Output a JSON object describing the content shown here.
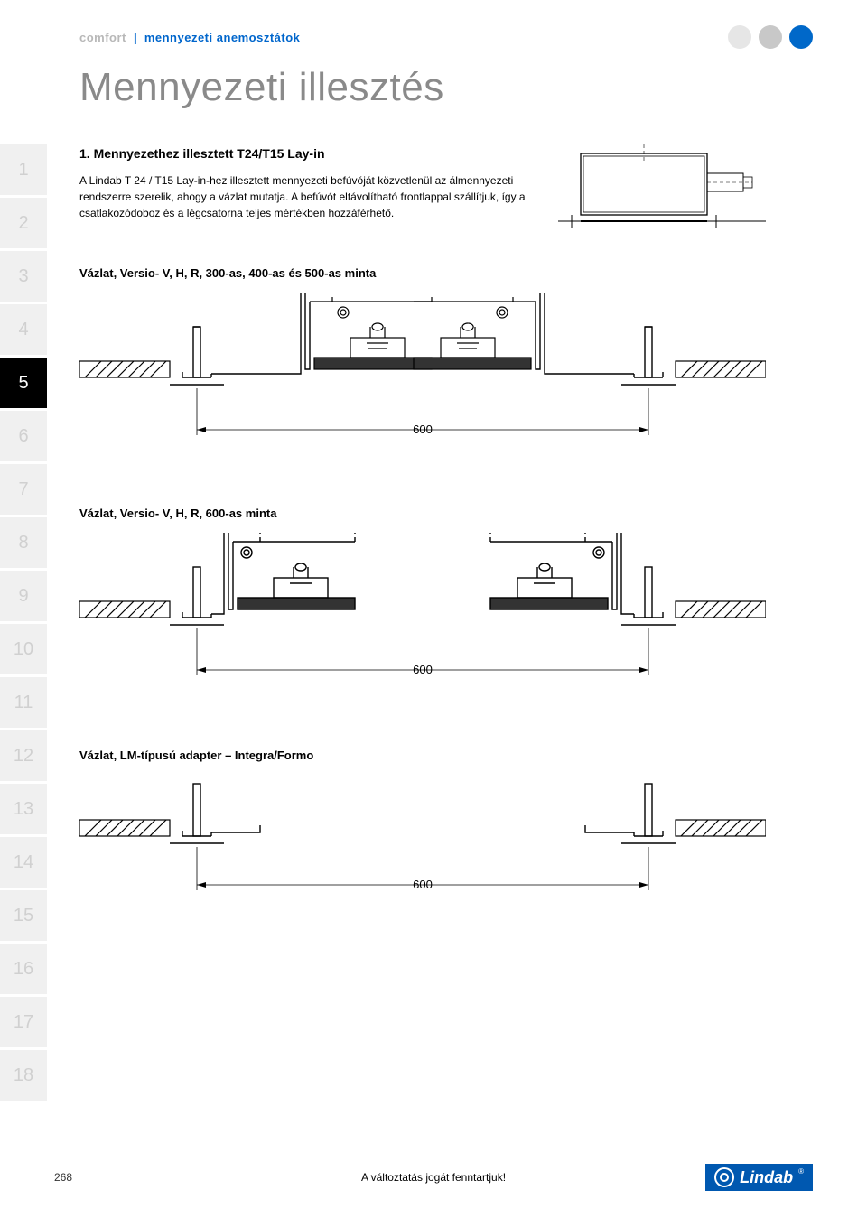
{
  "header": {
    "brand": "comfort",
    "separator": "|",
    "category": "mennyezeti anemosztátok",
    "dot_colors": [
      "#e6e6e6",
      "#c8c8c8",
      "#0068c9"
    ]
  },
  "title": "Mennyezeti illesztés",
  "sidebar": {
    "items": [
      "1",
      "2",
      "3",
      "4",
      "5",
      "6",
      "7",
      "8",
      "9",
      "10",
      "11",
      "12",
      "13",
      "14",
      "15",
      "16",
      "17",
      "18"
    ],
    "active_index": 4,
    "bg_inactive": "#f0f0f0",
    "fg_inactive": "#d0d0d0",
    "bg_active": "#000000",
    "fg_active": "#ffffff"
  },
  "section1": {
    "heading": "1. Mennyezethez illesztett T24/T15 Lay-in",
    "paragraph": "A Lindab T 24 / T15 Lay-in-hez illesztett mennyezeti befúvóját közvetlenül az álmennyezeti rendszerre szerelik, ahogy a vázlat mutatja. A befúvót eltávolítható frontlappal szállítjuk, így a csatlakozódoboz és a légcsatorna teljes mértékben hozzáférhető."
  },
  "diagram1": {
    "heading": "Vázlat, Versio- V, H, R, 300-as, 400-as és 500-as minta",
    "dimension": "600"
  },
  "diagram2": {
    "heading": "Vázlat, Versio- V, H, R, 600-as minta",
    "dimension": "600"
  },
  "diagram3": {
    "heading": "Vázlat, LM-típusú adapter – Integra/Formo",
    "dimension": "600"
  },
  "footer": {
    "page": "268",
    "disclaimer": "A változtatás jogát fenntartjuk!",
    "logo_name": "Lindab",
    "logo_bg": "#0058b0"
  },
  "colors": {
    "title_gray": "#8a8a8a",
    "accent_blue": "#0068c9",
    "line": "#000000"
  }
}
